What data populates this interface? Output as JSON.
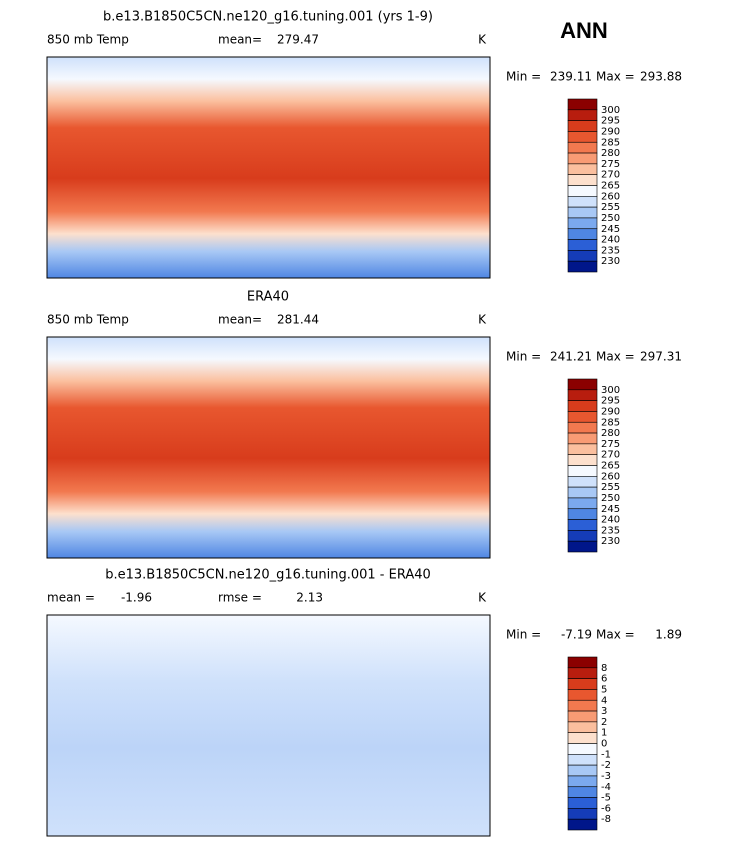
{
  "header": {
    "title": "ANN"
  },
  "panels": [
    {
      "title": "b.e13.B1850C5CN.ne120_g16.tuning.001 (yrs 1-9)",
      "left_label": "850 mb Temp",
      "stats": [
        {
          "label": "mean=",
          "value": 279.47
        }
      ],
      "units": "K",
      "min_label": "Min =",
      "min": 239.11,
      "max_label": "Max =",
      "max": 293.88,
      "levels": [
        300,
        295,
        290,
        285,
        280,
        275,
        270,
        265,
        260,
        255,
        250,
        245,
        240,
        235,
        230
      ],
      "colors": [
        "#8b0000",
        "#b81d0e",
        "#d83c1c",
        "#e8572f",
        "#f2794f",
        "#f89b74",
        "#fbbf9e",
        "#fde0cd",
        "#f5f9ff",
        "#cfe1fb",
        "#a8c8f5",
        "#7ba9ee",
        "#4f86e3",
        "#2b5fd6",
        "#153cb8",
        "#00168a"
      ]
    },
    {
      "title": "ERA40",
      "left_label": "850 mb Temp",
      "stats": [
        {
          "label": "mean=",
          "value": 281.44
        }
      ],
      "units": "K",
      "min_label": "Min =",
      "min": 241.21,
      "max_label": "Max =",
      "max": 297.31,
      "levels": [
        300,
        295,
        290,
        285,
        280,
        275,
        270,
        265,
        260,
        255,
        250,
        245,
        240,
        235,
        230
      ],
      "colors": [
        "#8b0000",
        "#b81d0e",
        "#d83c1c",
        "#e8572f",
        "#f2794f",
        "#f89b74",
        "#fbbf9e",
        "#fde0cd",
        "#f5f9ff",
        "#cfe1fb",
        "#a8c8f5",
        "#7ba9ee",
        "#4f86e3",
        "#2b5fd6",
        "#153cb8",
        "#00168a"
      ]
    },
    {
      "title": "b.e13.B1850C5CN.ne120_g16.tuning.001 - ERA40",
      "stats": [
        {
          "label": "mean =",
          "value": -1.96
        },
        {
          "label": "rmse =",
          "value": 2.13
        }
      ],
      "units": "K",
      "min_label": "Min =",
      "min": -7.19,
      "max_label": "Max =",
      "max": 1.89,
      "levels": [
        8,
        6,
        5,
        4,
        3,
        2,
        1,
        0,
        -1,
        -2,
        -3,
        -4,
        -5,
        -6,
        -8
      ],
      "colors": [
        "#8b0000",
        "#b81d0e",
        "#d83c1c",
        "#e8572f",
        "#f2794f",
        "#f89b74",
        "#fbbf9e",
        "#fde0cd",
        "#f5f9ff",
        "#cfe1fb",
        "#a8c8f5",
        "#7ba9ee",
        "#4f86e3",
        "#2b5fd6",
        "#153cb8",
        "#00168a"
      ]
    }
  ]
}
